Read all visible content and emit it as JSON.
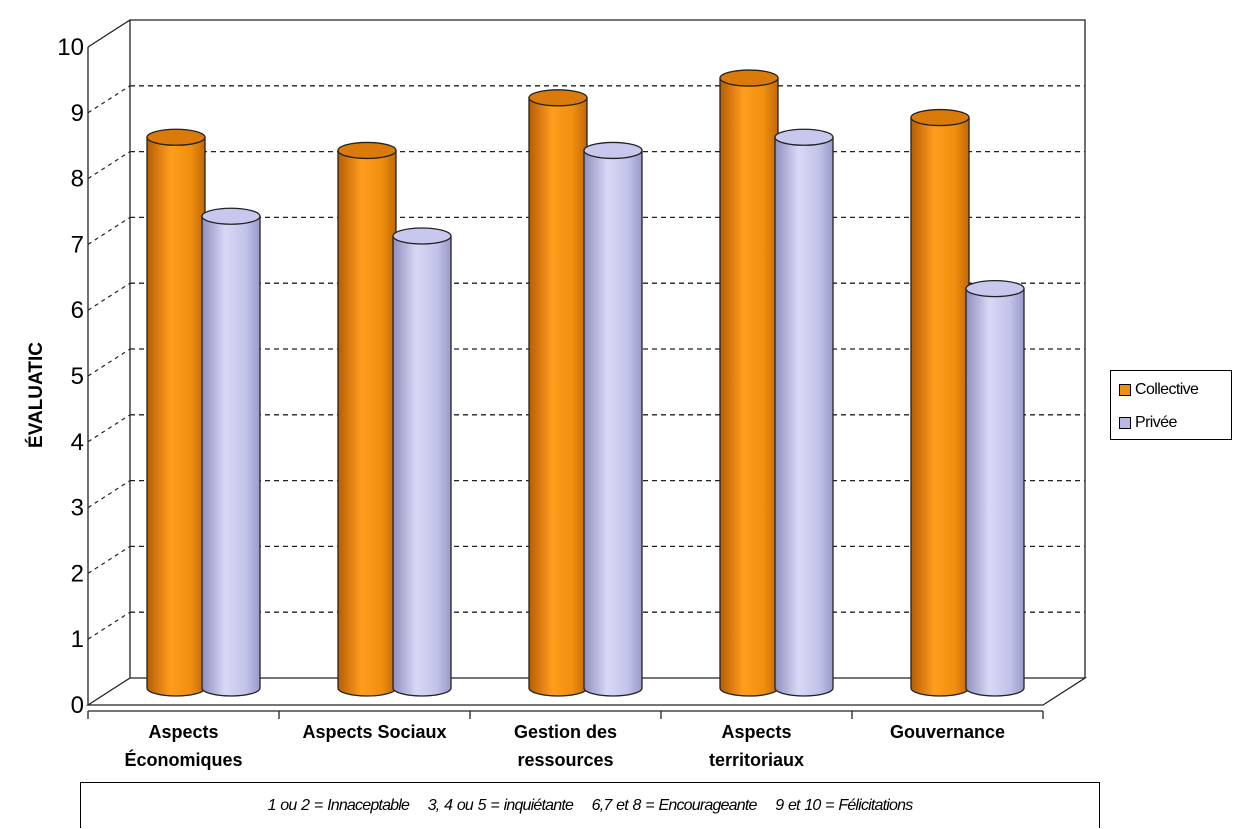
{
  "chart_data": {
    "type": "bar",
    "title": "",
    "xlabel": "",
    "ylabel": "ÉVALUATIC",
    "ylim": [
      0,
      10
    ],
    "yticks": [
      "0",
      "1",
      "2",
      "3",
      "4",
      "5",
      "6",
      "7",
      "8",
      "9",
      "10"
    ],
    "categories": [
      [
        "Aspects",
        "Économiques"
      ],
      [
        "Aspects Sociaux"
      ],
      [
        "Gestion des",
        "ressources"
      ],
      [
        "Aspects",
        "territoriaux"
      ],
      [
        "Gouvernance"
      ]
    ],
    "series": [
      {
        "name": "Collective",
        "color": "#f0900f",
        "values": [
          8.4,
          8.2,
          9.0,
          9.3,
          8.7
        ]
      },
      {
        "name": "Privée",
        "color": "#b9b9e3",
        "values": [
          7.2,
          6.9,
          8.2,
          8.4,
          6.1
        ]
      }
    ],
    "grid": true,
    "legend": "right",
    "note": "1 ou 2 = Innaceptable    3, 4 ou 5 = inquiétante    6,7 et 8 = Encourageante    9 et 10 = Félicitations"
  }
}
